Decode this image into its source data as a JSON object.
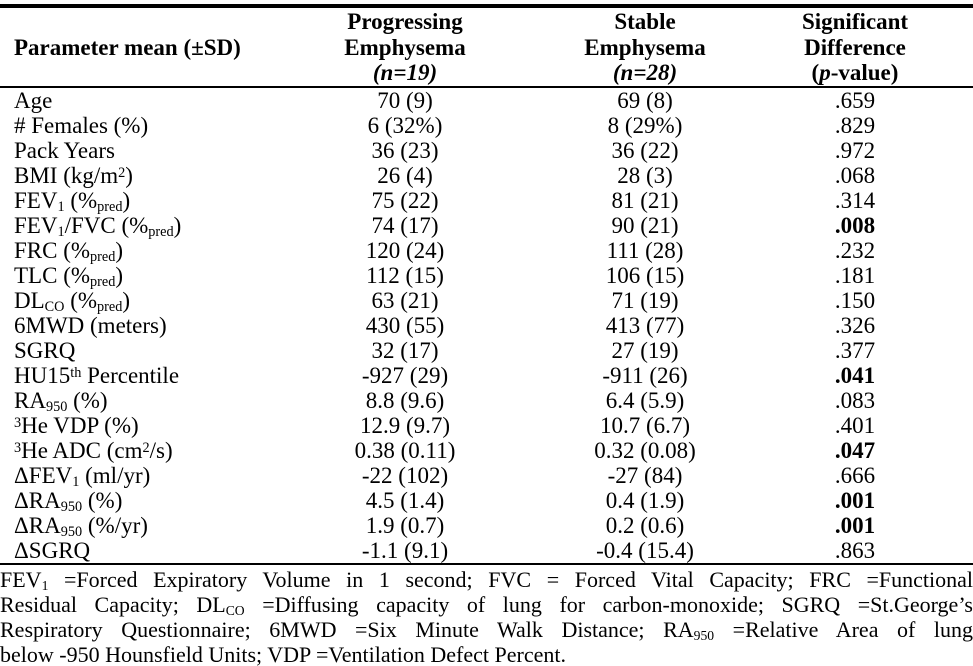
{
  "colors": {
    "text": "#000000",
    "background": "#ffffff",
    "rule": "#000000"
  },
  "table": {
    "header": {
      "param": [
        {
          "t": "Parameter mean (±SD)"
        }
      ],
      "progressing": [
        [
          {
            "t": "Progressing"
          }
        ],
        [
          {
            "t": "Emphysema"
          }
        ],
        [
          {
            "t": "(n=19)",
            "s": "i"
          }
        ]
      ],
      "stable": [
        [
          {
            "t": "Stable"
          }
        ],
        [
          {
            "t": "Emphysema"
          }
        ],
        [
          {
            "t": "(n=28)",
            "s": "i"
          }
        ]
      ],
      "significance": [
        [
          {
            "t": "Significant"
          }
        ],
        [
          {
            "t": "Difference"
          }
        ],
        [
          {
            "t": "("
          },
          {
            "t": "p",
            "s": "i"
          },
          {
            "t": "-value)"
          }
        ]
      ]
    },
    "rows": [
      {
        "param": [
          {
            "t": "Age"
          }
        ],
        "progressing": "70 (9)",
        "stable": "69 (8)",
        "p": [
          {
            "t": ".659"
          }
        ]
      },
      {
        "param": [
          {
            "t": "# Females (%)"
          }
        ],
        "progressing": "6 (32%)",
        "stable": "8 (29%)",
        "p": [
          {
            "t": ".829"
          }
        ]
      },
      {
        "param": [
          {
            "t": "Pack Years"
          }
        ],
        "progressing": "36 (23)",
        "stable": "36 (22)",
        "p": [
          {
            "t": ".972"
          }
        ]
      },
      {
        "param": [
          {
            "t": "BMI (kg/m"
          },
          {
            "t": "2",
            "s": "sup"
          },
          {
            "t": ")"
          }
        ],
        "progressing": "26 (4)",
        "stable": "28 (3)",
        "p": [
          {
            "t": ".068"
          }
        ]
      },
      {
        "param": [
          {
            "t": "FEV"
          },
          {
            "t": "1",
            "s": "sub"
          },
          {
            "t": " (%"
          },
          {
            "t": "pred",
            "s": "sub"
          },
          {
            "t": ")"
          }
        ],
        "progressing": "75 (22)",
        "stable": "81 (21)",
        "p": [
          {
            "t": ".314"
          }
        ]
      },
      {
        "param": [
          {
            "t": "FEV"
          },
          {
            "t": "1",
            "s": "sub"
          },
          {
            "t": "/FVC (%"
          },
          {
            "t": "pred",
            "s": "sub"
          },
          {
            "t": ")"
          }
        ],
        "progressing": "74 (17)",
        "stable": "90 (21)",
        "p": [
          {
            "t": ".008",
            "s": "b"
          }
        ]
      },
      {
        "param": [
          {
            "t": "FRC (%"
          },
          {
            "t": "pred",
            "s": "sub"
          },
          {
            "t": ")"
          }
        ],
        "progressing": "120 (24)",
        "stable": "111 (28)",
        "p": [
          {
            "t": ".232"
          }
        ]
      },
      {
        "param": [
          {
            "t": "TLC (%"
          },
          {
            "t": "pred",
            "s": "sub"
          },
          {
            "t": ")"
          }
        ],
        "progressing": "112 (15)",
        "stable": "106 (15)",
        "p": [
          {
            "t": ".181"
          }
        ]
      },
      {
        "param": [
          {
            "t": "DL"
          },
          {
            "t": "CO",
            "s": "sub"
          },
          {
            "t": " (%"
          },
          {
            "t": "pred",
            "s": "sub"
          },
          {
            "t": ")"
          }
        ],
        "progressing": "63 (21)",
        "stable": "71 (19)",
        "p": [
          {
            "t": ".150"
          }
        ]
      },
      {
        "param": [
          {
            "t": "6MWD (meters)"
          }
        ],
        "progressing": "430 (55)",
        "stable": "413 (77)",
        "p": [
          {
            "t": ".326"
          }
        ]
      },
      {
        "param": [
          {
            "t": "SGRQ"
          }
        ],
        "progressing": "32 (17)",
        "stable": "27 (19)",
        "p": [
          {
            "t": ".377"
          }
        ]
      },
      {
        "param": [
          {
            "t": "HU15"
          },
          {
            "t": "th",
            "s": "sup"
          },
          {
            "t": " Percentile"
          }
        ],
        "progressing": "-927 (29)",
        "stable": "-911 (26)",
        "p": [
          {
            "t": ".041",
            "s": "b"
          }
        ]
      },
      {
        "param": [
          {
            "t": "RA"
          },
          {
            "t": "950",
            "s": "sub"
          },
          {
            "t": " (%)"
          }
        ],
        "progressing": "8.8 (9.6)",
        "stable": "6.4 (5.9)",
        "p": [
          {
            "t": ".083"
          }
        ]
      },
      {
        "param": [
          {
            "t": "3",
            "s": "sup"
          },
          {
            "t": "He VDP (%)"
          }
        ],
        "progressing": "12.9 (9.7)",
        "stable": "10.7 (6.7)",
        "p": [
          {
            "t": ".401"
          }
        ]
      },
      {
        "param": [
          {
            "t": "3",
            "s": "sup"
          },
          {
            "t": "He ADC (cm"
          },
          {
            "t": "2",
            "s": "sup"
          },
          {
            "t": "/s)"
          }
        ],
        "progressing": "0.38 (0.11)",
        "stable": "0.32 (0.08)",
        "p": [
          {
            "t": ".047",
            "s": "b"
          }
        ]
      },
      {
        "param": [
          {
            "t": "ΔFEV"
          },
          {
            "t": "1",
            "s": "sub"
          },
          {
            "t": " (ml/yr)"
          }
        ],
        "progressing": "-22 (102)",
        "stable": "-27 (84)",
        "p": [
          {
            "t": ".666"
          }
        ]
      },
      {
        "param": [
          {
            "t": "ΔRA"
          },
          {
            "t": "950",
            "s": "sub"
          },
          {
            "t": " (%)"
          }
        ],
        "progressing": "4.5 (1.4)",
        "stable": "0.4 (1.9)",
        "p": [
          {
            "t": ".001",
            "s": "b"
          }
        ]
      },
      {
        "param": [
          {
            "t": "ΔRA"
          },
          {
            "t": "950",
            "s": "sub"
          },
          {
            "t": " (%/yr)"
          }
        ],
        "progressing": "1.9 (0.7)",
        "stable": "0.2 (0.6)",
        "p": [
          {
            "t": ".001",
            "s": "b"
          }
        ]
      },
      {
        "param": [
          {
            "t": "ΔSGRQ"
          }
        ],
        "progressing": "-1.1 (9.1)",
        "stable": "-0.4 (15.4)",
        "p": [
          {
            "t": ".863"
          }
        ]
      }
    ]
  },
  "footnote": {
    "lines": [
      [
        {
          "t": "FEV"
        },
        {
          "t": "1",
          "s": "sub"
        },
        {
          "t": " =Forced Expiratory Volume in 1 second; FVC = Forced Vital Capacity; FRC =Functional"
        }
      ],
      [
        {
          "t": "Residual Capacity; DL"
        },
        {
          "t": "CO",
          "s": "sub"
        },
        {
          "t": " =Diffusing capacity of lung for carbon-monoxide; SGRQ =St.George’s"
        }
      ],
      [
        {
          "t": "Respiratory Questionnaire; 6MWD =Six Minute Walk Distance; RA"
        },
        {
          "t": "950",
          "s": "sub"
        },
        {
          "t": " =Relative Area of lung"
        }
      ],
      [
        {
          "t": "below -950 Hounsfield Units; VDP =Ventilation Defect Percent."
        }
      ]
    ]
  }
}
